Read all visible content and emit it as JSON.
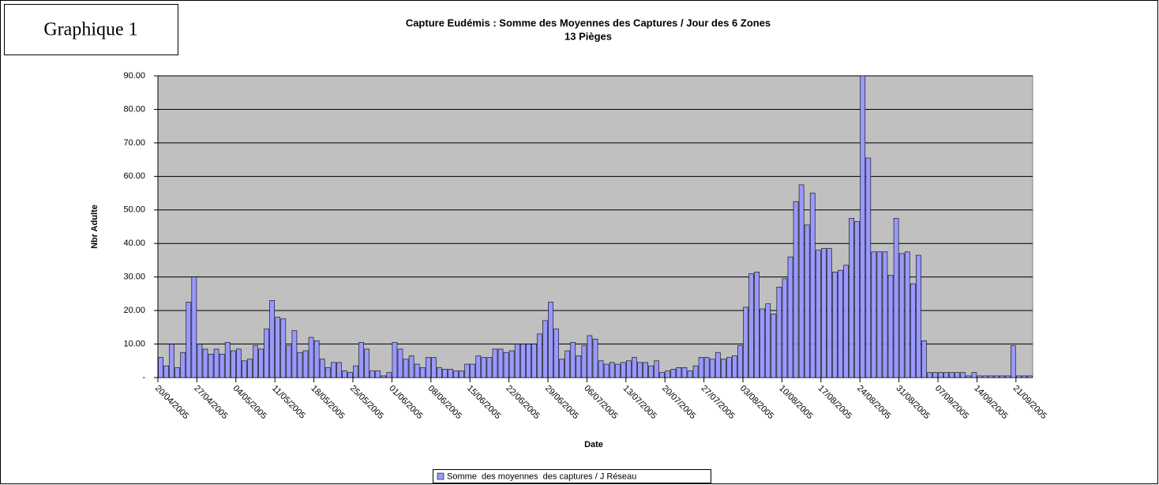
{
  "label": "Graphique 1",
  "chart_data": {
    "type": "bar",
    "title": "Capture Eudémis : Somme des Moyennes des Captures / Jour des 6 Zones",
    "subtitle": "13 Pièges",
    "x_label": "Date",
    "y_label": "Nbr Adulte",
    "categories": [
      "20/04/2005",
      null,
      null,
      null,
      null,
      null,
      null,
      "27/04/2005",
      null,
      null,
      null,
      null,
      null,
      null,
      "04/05/2005",
      null,
      null,
      null,
      null,
      null,
      null,
      "11/05/2005",
      null,
      null,
      null,
      null,
      null,
      null,
      "18/05/2005",
      null,
      null,
      null,
      null,
      null,
      null,
      "25/05/2005",
      null,
      null,
      null,
      null,
      null,
      null,
      "01/06/2005",
      null,
      null,
      null,
      null,
      null,
      null,
      "08/06/2005",
      null,
      null,
      null,
      null,
      null,
      null,
      "15/06/2005",
      null,
      null,
      null,
      null,
      null,
      null,
      "22/06/2005",
      null,
      null,
      null,
      null,
      null,
      null,
      "29/06/2005",
      null,
      null,
      null,
      null,
      null,
      null,
      "06/07/2005",
      null,
      null,
      null,
      null,
      null,
      null,
      "13/07/2005",
      null,
      null,
      null,
      null,
      null,
      null,
      "20/07/2005",
      null,
      null,
      null,
      null,
      null,
      null,
      "27/07/2005",
      null,
      null,
      null,
      null,
      null,
      null,
      "03/08/2005",
      null,
      null,
      null,
      null,
      null,
      null,
      "10/08/2005",
      null,
      null,
      null,
      null,
      null,
      null,
      "17/08/2005",
      null,
      null,
      null,
      null,
      null,
      null,
      "24/08/2005",
      null,
      null,
      null,
      null,
      null,
      null,
      "31/08/2005",
      null,
      null,
      null,
      null,
      null,
      null,
      "07/09/2005",
      null,
      null,
      null,
      null,
      null,
      null,
      "14/09/2005",
      null,
      null,
      null,
      null,
      null,
      null,
      "21/09/2005",
      null,
      null
    ],
    "series": [
      {
        "name": "Somme  des moyennes  des captures / J Réseau",
        "color": "#9999ff",
        "values": [
          6,
          3.5,
          10,
          3,
          7.5,
          22.5,
          30,
          10,
          8.5,
          7,
          8.5,
          7,
          10.5,
          8,
          8.5,
          5,
          5.5,
          9.5,
          8.5,
          14.5,
          23,
          18,
          17.5,
          9.5,
          14,
          7.5,
          8,
          12,
          11,
          5.5,
          3,
          4.5,
          4.5,
          2,
          1.5,
          3.5,
          10.5,
          8.5,
          2,
          2,
          0.5,
          1.5,
          10.5,
          8.5,
          5.5,
          6.5,
          4,
          3,
          6,
          6,
          3,
          2.5,
          2.5,
          2,
          2,
          4,
          4,
          6.5,
          6,
          6,
          8.5,
          8.5,
          7.5,
          8,
          10,
          10,
          10,
          10,
          13,
          17,
          22.5,
          14.5,
          5.5,
          8,
          10.5,
          6.5,
          9.5,
          12.5,
          11.5,
          5,
          4,
          4.5,
          4,
          4.5,
          5,
          6,
          4.5,
          4.5,
          3.5,
          5,
          1.5,
          2,
          2.5,
          3,
          3,
          2,
          3.5,
          6,
          6,
          5.5,
          7.5,
          5.5,
          6,
          6.5,
          9.5,
          21,
          31,
          31.5,
          20.5,
          22,
          19,
          27,
          29.5,
          36,
          52.5,
          57.5,
          45.5,
          55,
          38,
          38.5,
          38.5,
          31.5,
          32,
          33.5,
          47.5,
          46.5,
          90,
          65.5,
          37.5,
          37.5,
          37.5,
          30.5,
          47.5,
          37,
          37.5,
          28,
          36.5,
          11,
          1.5,
          1.5,
          1.5,
          1.5,
          1.5,
          1.5,
          1.5,
          0.5,
          1.5,
          0.5,
          0.5,
          0.5,
          0.5,
          0.5,
          0.5,
          9.5,
          0.5,
          0.5,
          0.5
        ]
      }
    ],
    "ylim": [
      0,
      90
    ],
    "yticks": [
      {
        "value": 0,
        "label": "-"
      },
      {
        "value": 10,
        "label": "10.00"
      },
      {
        "value": 20,
        "label": "20.00"
      },
      {
        "value": 30,
        "label": "30.00"
      },
      {
        "value": 40,
        "label": "40.00"
      },
      {
        "value": 50,
        "label": "50.00"
      },
      {
        "value": 60,
        "label": "60.00"
      },
      {
        "value": 70,
        "label": "70.00"
      },
      {
        "value": 80,
        "label": "80.00"
      },
      {
        "value": 90,
        "label": "90.00"
      }
    ],
    "grid": true,
    "legend": "bottom"
  }
}
